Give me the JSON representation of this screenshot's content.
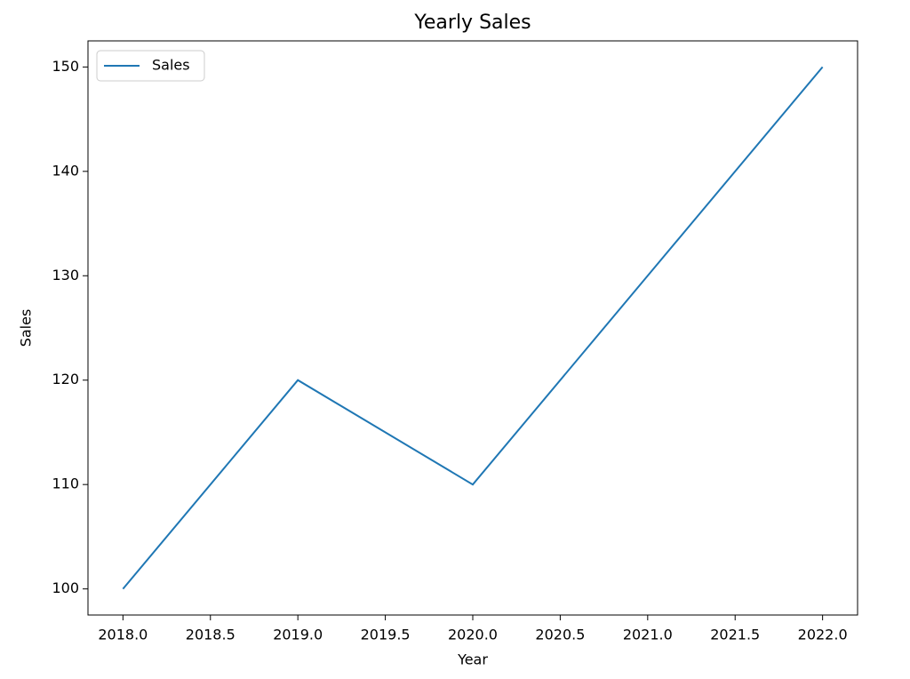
{
  "chart_data": {
    "type": "line",
    "title": "Yearly Sales",
    "x_label": "Year",
    "y_label": "Sales",
    "x": [
      2018,
      2019,
      2020,
      2021,
      2022
    ],
    "series": [
      {
        "name": "Sales",
        "color": "#1f77b4",
        "values": [
          100,
          120,
          110,
          130,
          150
        ]
      }
    ],
    "xlim": [
      2017.8,
      2022.2
    ],
    "xticks": [
      {
        "value": 2018,
        "label": "2018.0"
      },
      {
        "value": 2018.5,
        "label": "2018.5"
      },
      {
        "value": 2019,
        "label": "2019.0"
      },
      {
        "value": 2019.5,
        "label": "2019.5"
      },
      {
        "value": 2020,
        "label": "2020.0"
      },
      {
        "value": 2020.5,
        "label": "2020.5"
      },
      {
        "value": 2021,
        "label": "2021.0"
      },
      {
        "value": 2021.5,
        "label": "2021.5"
      },
      {
        "value": 2022,
        "label": "2022.0"
      }
    ],
    "ylim": [
      97.5,
      152.5
    ],
    "yticks": [
      100,
      110,
      120,
      130,
      140,
      150
    ],
    "grid": false,
    "legend": "upper-left"
  }
}
